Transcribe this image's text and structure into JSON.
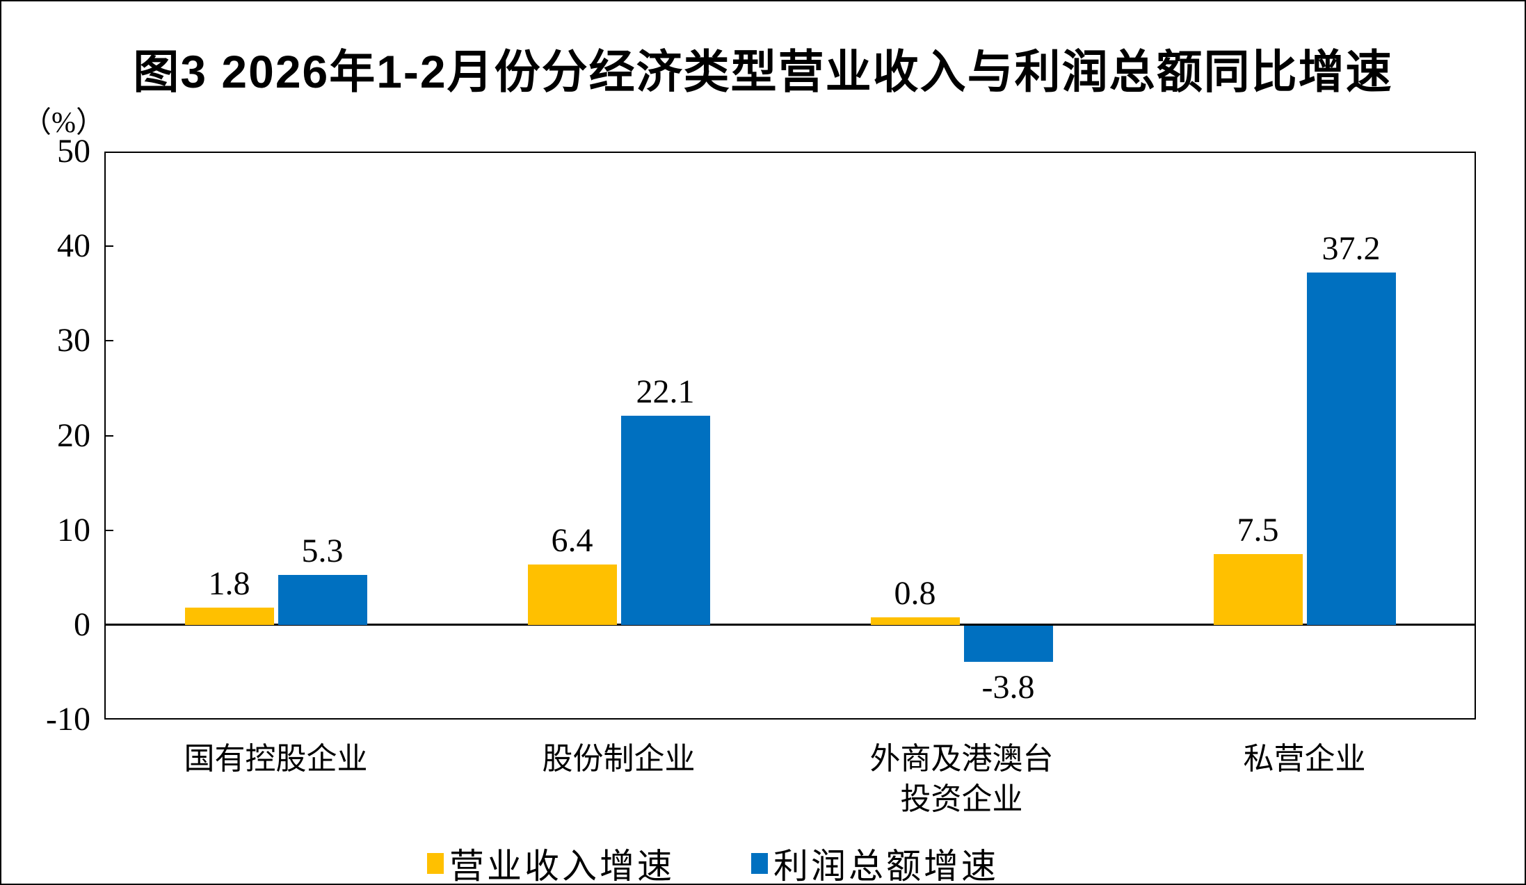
{
  "chart_data": {
    "type": "bar",
    "title": "图3 2026年1-2月份分经济类型营业收入与利润总额同比增速",
    "unit_label": "（%）",
    "categories": [
      "国有控股企业",
      "股份制企业",
      "外商及港澳台\n投资企业",
      "私营企业"
    ],
    "series": [
      {
        "name": "营业收入增速",
        "color": "#FFC000",
        "values": [
          1.8,
          6.4,
          0.8,
          7.5
        ]
      },
      {
        "name": "利润总额增速",
        "color": "#0070C0",
        "values": [
          5.3,
          22.1,
          -3.8,
          37.2
        ]
      }
    ],
    "ylim": [
      -10,
      50
    ],
    "yticks": [
      -10,
      0,
      10,
      20,
      30,
      40,
      50
    ],
    "grid": false,
    "legend_position": "bottom",
    "value_labels": true,
    "axis_color": "#000000",
    "background_color": "#FFFFFF"
  }
}
